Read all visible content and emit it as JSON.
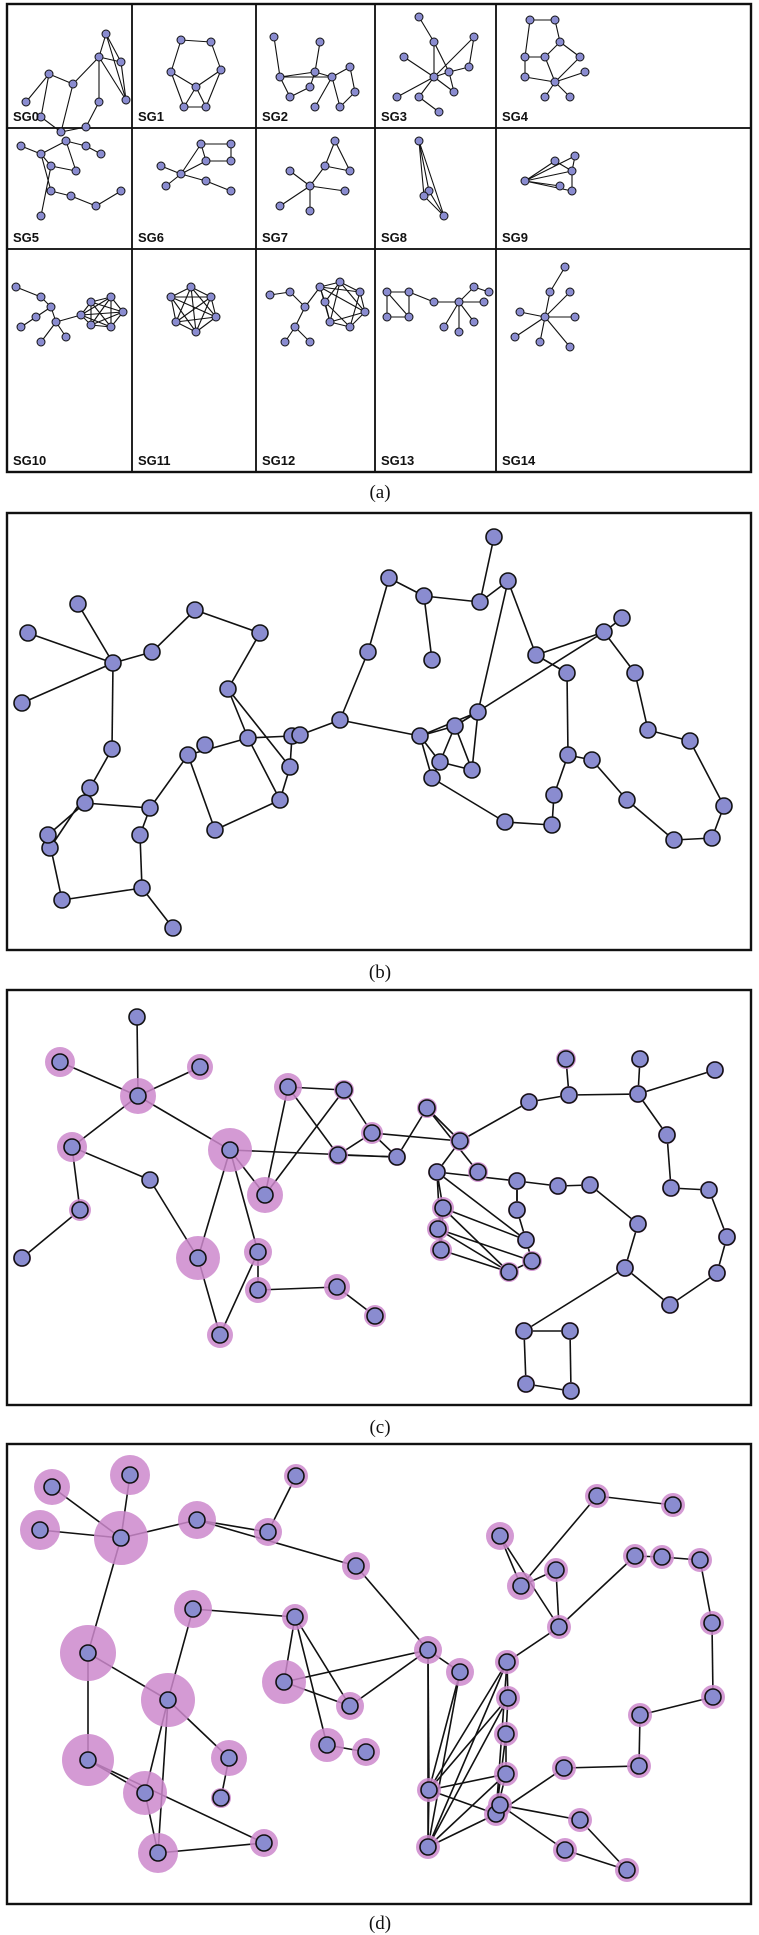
{
  "panel_a": {
    "caption": "(a)",
    "subgraph_labels": [
      "SG0",
      "SG1",
      "SG2",
      "SG3",
      "SG4",
      "SG5",
      "SG6",
      "SG7",
      "SG8",
      "SG9",
      "SG10",
      "SG11",
      "SG12",
      "SG13",
      "SG14"
    ]
  },
  "panel_b": {
    "caption": "(b)"
  },
  "panel_c": {
    "caption": "(c)"
  },
  "panel_d": {
    "caption": "(d)"
  },
  "colors": {
    "node_fill": "#8a8cd0",
    "node_stroke": "#111111",
    "edge": "#111111",
    "highlight_halo": "#cc88cc",
    "background": "#ffffff"
  }
}
